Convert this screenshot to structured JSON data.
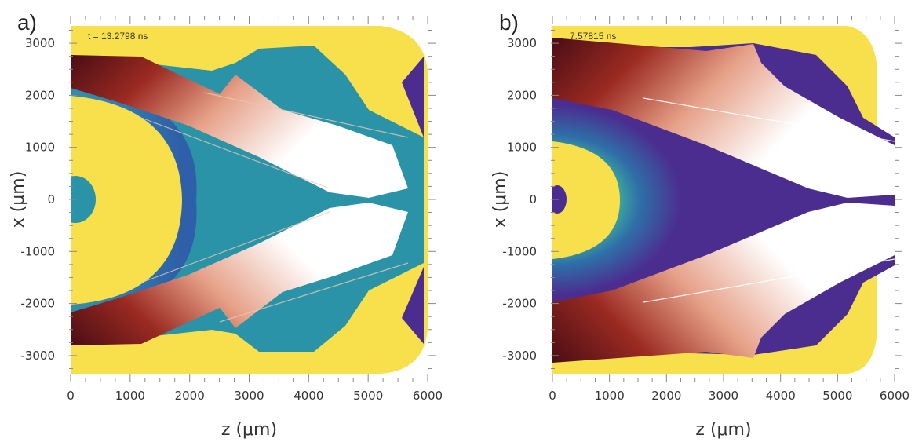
{
  "colors": {
    "background": "#ffffff",
    "yellow": "#f8e04c",
    "teal": "#24a4a4",
    "blue": "#2e5fa8",
    "purple": "#4b2d8f",
    "darkred": "#4a0d14",
    "red": "#b33a2a",
    "white": "#ffffff"
  },
  "chart_data": [
    {
      "type": "heatmap",
      "panel_label": "a)",
      "annotation": "t = 13.2798 ns",
      "xlabel": "z (μm)",
      "ylabel": "x (μm)",
      "xlim": [
        0,
        6000
      ],
      "ylim": [
        -3300,
        3300
      ],
      "xticks": [
        "0",
        "1000",
        "2000",
        "3000",
        "4000",
        "5000",
        "6000"
      ],
      "yticks": [
        "3000",
        "2000",
        "1000",
        "0",
        "-1000",
        "-2000",
        "-3000"
      ],
      "core_color": "yellow"
    },
    {
      "type": "heatmap",
      "panel_label": "b)",
      "annotation": "7.57815 ns",
      "xlabel": "z (μm)",
      "ylabel": "x (μm)",
      "xlim": [
        0,
        6000
      ],
      "ylim": [
        -3300,
        3300
      ],
      "xticks": [
        "0",
        "1000",
        "2000",
        "3000",
        "4000",
        "5000",
        "6000"
      ],
      "yticks": [
        "3000",
        "2000",
        "1000",
        "0",
        "-1000",
        "-2000",
        "-3000"
      ],
      "core_color": "purple"
    }
  ]
}
